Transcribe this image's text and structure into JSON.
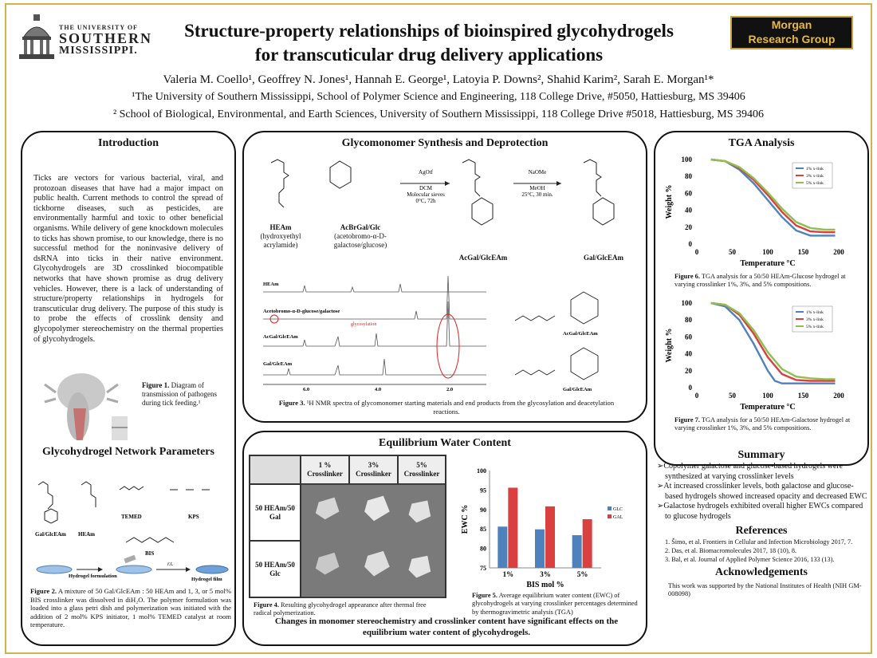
{
  "header": {
    "logo_left": {
      "line1": "THE UNIVERSITY OF",
      "line2": "SOUTHERN",
      "line3": "MISSISSIPPI."
    },
    "title_line1": "Structure-property relationships of bioinspired glycohydrogels",
    "title_line2": "for transcuticular drug delivery applications",
    "logo_right": {
      "line1": "Morgan",
      "line2": "Research Group"
    },
    "authors": "Valeria M. Coello¹, Geoffrey N. Jones¹, Hannah E. George¹, Latoyia P. Downs², Shahid Karim², Sarah E. Morgan¹*",
    "affiliation1": "¹The University of Southern Mississippi, School of Polymer Science and Engineering, 118 College Drive, #5050, Hattiesburg, MS 39406",
    "affiliation2": "² School of Biological, Environmental, and Earth Sciences, University of Southern Mississippi, 118 College Drive #5018, Hattiesburg, MS 39406"
  },
  "introduction": {
    "title": "Introduction",
    "text": "Ticks are vectors for various bacterial, viral, and protozoan diseases that have had a major impact on public health. Current methods to control the spread of tickborne diseases, such as pesticides, are environmentally harmful and toxic to other beneficial organisms. While delivery of gene knockdown molecules to ticks has shown promise, to our knowledge, there is no successful method for the noninvasive delivery of dsRNA into ticks in their native environment. Glycohydrogels are 3D crosslinked biocompatible networks that have shown promise as drug delivery vehicles. However, there is a lack of understanding of structure/property relationships in hydrogels for transcuticular drug delivery. The purpose of this study is to probe the effects of crosslink density and glycopolymer stereochemistry on the thermal properties of glycohydrogels.",
    "fig1_label": "Figure 1.",
    "fig1_caption": " Diagram of transmission of pathogens during tick feeding.¹"
  },
  "network": {
    "title": "Glycohydrogel Network Parameters",
    "labels": {
      "glc": "Gal/GlcEAm",
      "heam": "HEAm",
      "temed": "TEMED",
      "kps": "KPS",
      "bis": "BIS",
      "formulation": "Hydrogel formulation",
      "rt": "r.t.",
      "film": "Hydrogel film"
    },
    "fig2_label": "Figure 2.",
    "fig2_caption": " A mixture of 50 Gal/GlcEAm : 50 HEAm and 1, 3, or 5 mol% BIS crosslinker was dissolved in diH₂O. The polymer formulation was loaded into a glass petri dish and polymerization was initiated with the addition of 2 mol% KPS initiator, 1 mol% TEMED catalyst at room temperature."
  },
  "glycomonomer": {
    "title": "Glycomonomer Synthesis and Deprotection",
    "heam_name": "HEAm",
    "heam_desc": "(hydroxyethyl acrylamide)",
    "acbr_name": "AcBrGal/Glc",
    "acbr_desc": "(acetobromo-α-D-galactose/glucose)",
    "step1": [
      "AgOtf",
      "DCM",
      "Molecular sieves",
      "0°C, 72h"
    ],
    "step2": [
      "NaOMe",
      "MeOH",
      "25°C, 30 min."
    ],
    "acgal": "AcGal/GlcEAm",
    "gal": "Gal/GlcEAm",
    "nmr_labels": {
      "heam": "HEAm",
      "acbr": "Acetobromo-α-D-glucose/galactose",
      "acgal": "AcGal/GlcEAm",
      "gal": "Gal/GlcEAm",
      "glyco": "glycosylation",
      "x1": "6.0",
      "x2": "4.0",
      "x3": "2.0"
    },
    "fig3_label": "Figure 3.",
    "fig3_caption": " ¹H NMR spectra of glycomonomer starting materials and end products from the glycosylation and deacetylation reactions."
  },
  "ewc": {
    "title": "Equilibrium Water Content",
    "col_headers": [
      "1 % Crosslinker",
      "3% Crosslinker",
      "5% Crosslinker"
    ],
    "row_headers": [
      "50 HEAm/50 Gal",
      "50 HEAm/50 Glc"
    ],
    "fig4_label": "Figure 4.",
    "fig4_caption": " Resulting glycohydrogel appearance after thermal free radical polymerization.",
    "fig5_label": "Figure 5.",
    "fig5_caption": " Average equilibrium water content (EWC) of glycohydrogels at varying crosslinker percentages determined by thermogravimetric analysis (TGA)",
    "conclusion": "Changes in monomer stereochemistry and crosslinker content have significant effects on the equilibrium water content of glycohydrogels."
  },
  "tga": {
    "title": "TGA Analysis",
    "fig6_label": "Figure 6.",
    "fig6_caption": " TGA analysis for a 50/50 HEAm-Glucose hydrogel at varying crosslinker 1%, 3%, and 5% compositions.",
    "fig7_label": "Figure 7.",
    "fig7_caption": " TGA analysis for a 50/50 HEAm-Galactose hydrogel at varying crosslinker 1%, 3%, and 5% compositions."
  },
  "summary": {
    "title": "Summary",
    "items": [
      "Copolymer galactose and glucose-based hydrogels were synthesized at varying crosslinker levels",
      "At increased crosslinker levels, both galactose and glucose-based hydrogels showed increased opacity and decreased EWC",
      "Galactose hydrogels exhibited overall higher EWCs compared to glucose hydrogels"
    ]
  },
  "references": {
    "title": "References",
    "items": [
      "1.  Šimo, et al. Frontiers in Cellular and Infection Microbiology 2017, 7.",
      "2.  Das, et al. Biomacromolecules 2017, 18 (10), 8.",
      "3.  Bal, et al. Journal of Applied Polymer Science 2016, 133 (13)."
    ]
  },
  "acknowledgements": {
    "title": "Acknowledgements",
    "text": "This work was supported by the National Institutes of Health (NIH GM-008098)"
  },
  "chart_data": [
    {
      "type": "bar",
      "ylabel": "EWC %",
      "xlabel": "BIS mol %",
      "categories": [
        "1%",
        "3%",
        "5%"
      ],
      "ylim": [
        75,
        100
      ],
      "yticks": [
        75,
        80,
        85,
        90,
        95,
        100
      ],
      "legend": "right",
      "series": [
        {
          "name": "GLC",
          "color": "#4f81bd",
          "values": [
            85.6,
            84.9,
            83.4
          ]
        },
        {
          "name": "GAL",
          "color": "#d9403f",
          "values": [
            95.6,
            90.8,
            87.5
          ]
        }
      ]
    },
    {
      "type": "line",
      "ylabel": "Weight %",
      "xlabel": "Temperature °C",
      "xlim": [
        0,
        200
      ],
      "ylim": [
        0,
        100
      ],
      "xticks": [
        0,
        50,
        100,
        150,
        200
      ],
      "yticks": [
        0,
        20,
        40,
        60,
        80,
        100
      ],
      "legend": "top-right",
      "series": [
        {
          "name": "1% x-link",
          "color": "#4f81bd",
          "x": [
            20,
            40,
            60,
            80,
            100,
            120,
            140,
            160,
            180,
            195
          ],
          "y": [
            100,
            98,
            88,
            72,
            52,
            32,
            16,
            10,
            10,
            10
          ]
        },
        {
          "name": "3% x-link",
          "color": "#d9403f",
          "x": [
            20,
            40,
            60,
            80,
            100,
            120,
            140,
            160,
            180,
            195
          ],
          "y": [
            100,
            98,
            90,
            76,
            58,
            38,
            22,
            15,
            14,
            14
          ]
        },
        {
          "name": "5% x-link",
          "color": "#8fbf4f",
          "x": [
            20,
            40,
            60,
            80,
            100,
            120,
            140,
            160,
            180,
            195
          ],
          "y": [
            100,
            98,
            91,
            78,
            61,
            42,
            26,
            19,
            17,
            17
          ]
        }
      ]
    },
    {
      "type": "line",
      "ylabel": "Weight %",
      "xlabel": "Temperature °C",
      "xlim": [
        0,
        200
      ],
      "ylim": [
        0,
        100
      ],
      "xticks": [
        0,
        50,
        100,
        150,
        200
      ],
      "yticks": [
        0,
        20,
        40,
        60,
        80,
        100
      ],
      "legend": "top-right",
      "series": [
        {
          "name": "1% x-link",
          "color": "#4f81bd",
          "x": [
            20,
            40,
            60,
            80,
            100,
            110,
            120,
            140,
            160,
            195
          ],
          "y": [
            100,
            96,
            80,
            52,
            20,
            8,
            5,
            5,
            5,
            5
          ]
        },
        {
          "name": "3% x-link",
          "color": "#d9403f",
          "x": [
            20,
            40,
            60,
            80,
            100,
            120,
            140,
            160,
            180,
            195
          ],
          "y": [
            100,
            98,
            86,
            64,
            36,
            16,
            9,
            8,
            8,
            8
          ]
        },
        {
          "name": "5% x-link",
          "color": "#8fbf4f",
          "x": [
            20,
            40,
            60,
            80,
            100,
            120,
            140,
            160,
            180,
            195
          ],
          "y": [
            100,
            98,
            88,
            68,
            42,
            22,
            13,
            11,
            10,
            10
          ]
        }
      ]
    }
  ]
}
